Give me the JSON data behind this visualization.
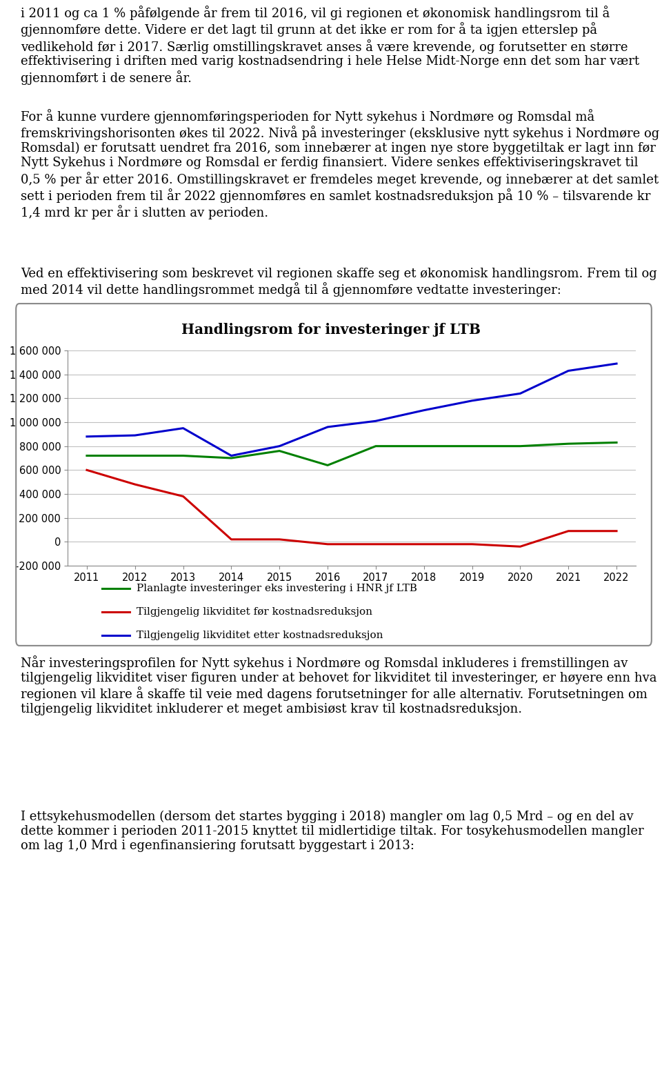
{
  "title": "Handlingsrom for investeringer jf LTB",
  "years": [
    2011,
    2012,
    2013,
    2014,
    2015,
    2016,
    2017,
    2018,
    2019,
    2020,
    2021,
    2022
  ],
  "green_line": [
    720000,
    720000,
    720000,
    700000,
    760000,
    640000,
    800000,
    800000,
    800000,
    800000,
    820000,
    830000
  ],
  "red_line": [
    600000,
    480000,
    380000,
    20000,
    20000,
    -20000,
    -20000,
    -20000,
    -20000,
    -40000,
    90000,
    90000
  ],
  "blue_line": [
    880000,
    890000,
    950000,
    720000,
    800000,
    960000,
    1010000,
    1100000,
    1180000,
    1240000,
    1430000,
    1490000
  ],
  "ylim": [
    -200000,
    1600000
  ],
  "yticks": [
    -200000,
    0,
    200000,
    400000,
    600000,
    800000,
    1000000,
    1200000,
    1400000,
    1600000
  ],
  "ytick_labels": [
    "-200 000",
    "0",
    "200 000",
    "400 000",
    "600 000",
    "800 000",
    "1 000 000",
    "1 200 000",
    "1 400 000",
    "1 600 000"
  ],
  "legend_green": "Planlagte investeringer eks investering i HNR jf LTB",
  "legend_red": "Tilgjengelig likviditet før kostnadsreduksjon",
  "legend_blue": "Tilgjengelig likviditet etter kostnadsreduksjon",
  "para1": "i 2011 og ca 1 % påfølgende år frem til 2016, vil gi regionen et økonomisk handlingsrom til å gjennomføre dette. Videre er det lagt til grunn at det ikke er rom for å ta igjen etterslep på vedlikehold før i 2017. Særlig omstillingskravet anses å være krevende, og forutsetter en større effektivisering i driften med varig kostnadsendring i hele Helse Midt-Norge enn det som har vært gjennomført i de senere år.",
  "para2": "For å kunne vurdere gjennomføringsperioden for Nytt sykehus i Nordmøre og Romsdal må fremskrivingshorisonten økes til 2022. Nivå på investeringer (eksklusive nytt sykehus i Nordmøre og Romsdal) er forutsatt uendret fra 2016, som innebærer at ingen nye store byggetiltak er lagt inn før Nytt Sykehus i Nordmøre og Romsdal er ferdig finansiert. Videre senkes effektiviseringskravet til 0,5 % per år etter 2016. Omstillingskravet er fremdeles meget krevende, og innebærer at det samlet sett i perioden frem til år 2022 gjennomføres en samlet kostnadsreduksjon på 10 % – tilsvarende kr 1,4 mrd kr per år i slutten av perioden.",
  "para3": "Ved en effektivisering som beskrevet vil regionen skaffe seg et økonomisk handlingsrom. Frem til og med 2014 vil dette handlingsrommet medgå til å gjennomføre vedtatte investeringer:",
  "para4": "Når investeringsprofilen for Nytt sykehus i Nordmøre og Romsdal inkluderes i fremstillingen av tilgjengelig likviditet viser figuren under at behovet for likviditet til investeringer, er høyere enn hva regionen vil klare å skaffe til veie med dagens forutsetninger for alle alternativ. Forutsetningen om tilgjengelig likviditet inkluderer et meget ambisiøst krav til kostnadsreduksjon.",
  "para5": "I ettsykehusmodellen (dersom det startes bygging i 2018) mangler om lag 0,5 Mrd – og en del av dette kommer i perioden 2011-2015 knyttet til midlertidige tiltak. For tosykehusmodellen mangler om lag 1,0 Mrd i egenfinansiering forutsatt byggestart i 2013:",
  "bg_color": "#ffffff",
  "text_color": "#000000",
  "grid_color": "#c0c0c0",
  "box_edge_color": "#888888",
  "line_color_green": "#008000",
  "line_color_red": "#cc0000",
  "line_color_blue": "#0000cc",
  "font_size_body": 13.0,
  "font_size_title": 14.5,
  "font_size_axis": 10.5,
  "font_size_legend": 11.0
}
